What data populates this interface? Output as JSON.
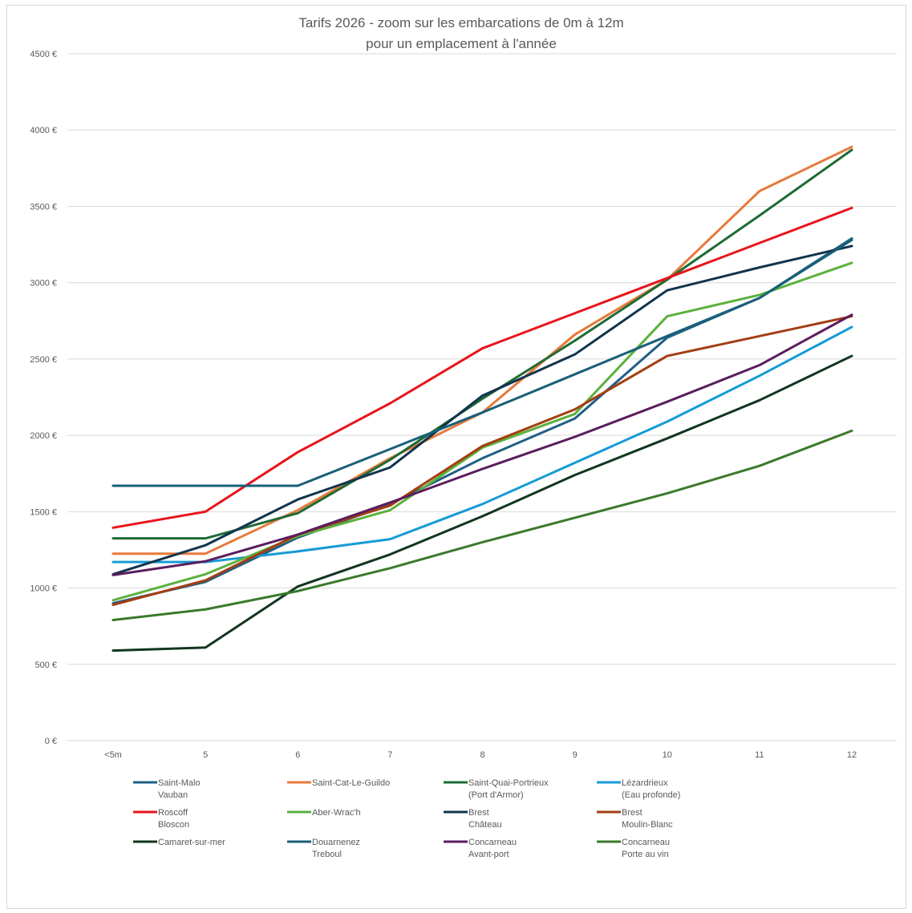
{
  "chart_data": {
    "type": "line",
    "title": [
      "Tarifs 2026 - zoom sur les embarcations de 0m à 12m",
      "pour un emplacement à l'année"
    ],
    "categories": [
      "<5m",
      "5",
      "6",
      "7",
      "8",
      "9",
      "10",
      "11",
      "12"
    ],
    "ylim": [
      0,
      4500
    ],
    "yticks": [
      0,
      500,
      1000,
      1500,
      2000,
      2500,
      3000,
      3500,
      4000,
      4500
    ],
    "ytick_labels": [
      "0 €",
      "500 €",
      "1000 €",
      "1500 €",
      "2000 €",
      "2500 €",
      "3000 €",
      "3500 €",
      "4000 €",
      "4500 €"
    ],
    "grid": true,
    "legend_position": "bottom",
    "series": [
      {
        "name": [
          "Saint-Malo",
          "Vauban"
        ],
        "color": "#1f5f86",
        "values": [
          900,
          1040,
          1330,
          1550,
          1850,
          2110,
          2640,
          2900,
          3290
        ]
      },
      {
        "name": [
          "Saint-Cat-Le-Guildo"
        ],
        "color": "#e7793a",
        "values": [
          1225,
          1225,
          1510,
          1850,
          2150,
          2660,
          3020,
          3600,
          3890
        ]
      },
      {
        "name": [
          "Saint-Quai-Portrieux",
          "(Port d'Armor)"
        ],
        "color": "#1e6b34",
        "values": [
          1325,
          1325,
          1490,
          1840,
          2240,
          2620,
          3020,
          3440,
          3870
        ]
      },
      {
        "name": [
          "Lézardrieux",
          "(Eau profonde)"
        ],
        "color": "#169bd5",
        "values": [
          1170,
          1170,
          1240,
          1320,
          1550,
          1820,
          2090,
          2390,
          2710
        ]
      },
      {
        "name": [
          "Roscoff",
          "Bloscon"
        ],
        "color": "#e8141b",
        "values": [
          1395,
          1500,
          1890,
          2210,
          2570,
          2800,
          3030,
          3260,
          3490
        ]
      },
      {
        "name": [
          "Aber-Wrac'h"
        ],
        "color": "#5bb13d",
        "values": [
          920,
          1090,
          1340,
          1510,
          1920,
          2140,
          2780,
          2920,
          3130
        ]
      },
      {
        "name": [
          "Brest",
          "Château"
        ],
        "color": "#10344d",
        "values": [
          1090,
          1280,
          1580,
          1790,
          2260,
          2530,
          2950,
          3100,
          3240
        ]
      },
      {
        "name": [
          "Brest",
          "Moulin-Blanc"
        ],
        "color": "#a33e12",
        "values": [
          890,
          1050,
          1350,
          1540,
          1930,
          2170,
          2520,
          2650,
          2780
        ]
      },
      {
        "name": [
          "Camaret-sur-mer"
        ],
        "color": "#11361e",
        "values": [
          590,
          610,
          1010,
          1220,
          1470,
          1740,
          1980,
          2230,
          2520
        ]
      },
      {
        "name": [
          "Douarnenez",
          "Treboul"
        ],
        "color": "#1a5f78",
        "values": [
          1670,
          1670,
          1670,
          1910,
          2150,
          2400,
          2650,
          2900,
          3280
        ]
      },
      {
        "name": [
          "Concarneau",
          "Avant-port"
        ],
        "color": "#5b1d5e",
        "values": [
          1085,
          1175,
          1350,
          1560,
          1780,
          1990,
          2220,
          2460,
          2790
        ]
      },
      {
        "name": [
          "Concarneau",
          "Porte au vin"
        ],
        "color": "#3a7a2c",
        "values": [
          790,
          860,
          980,
          1130,
          1300,
          1460,
          1620,
          1800,
          2030
        ]
      }
    ]
  }
}
